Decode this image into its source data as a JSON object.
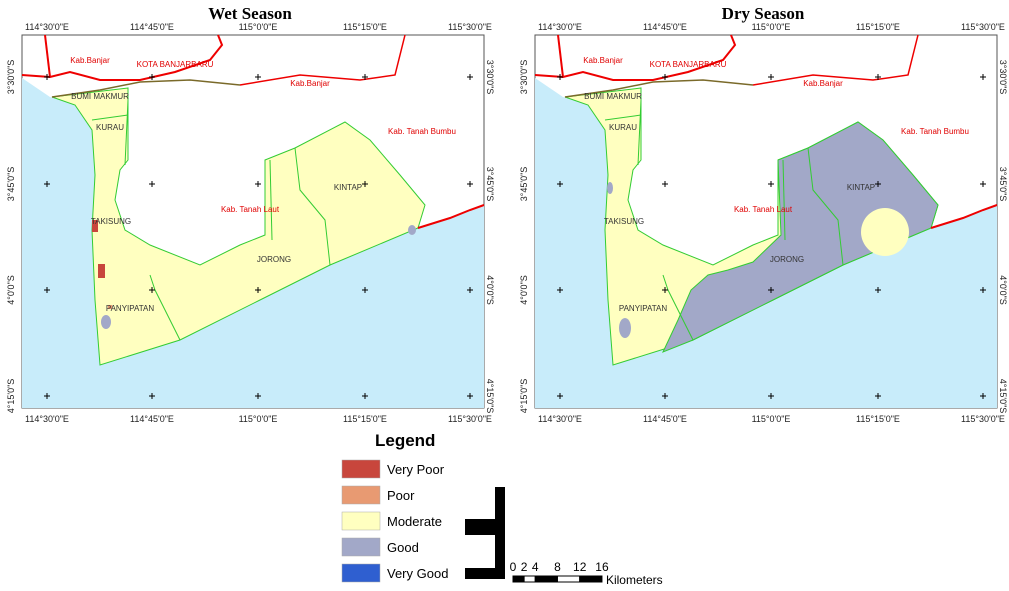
{
  "maps": [
    {
      "title": "Wet Season",
      "x_labels": [
        "114°30'0\"E",
        "114°45'0\"E",
        "115°0'0\"E",
        "115°15'0\"E",
        "115°30'0\"E"
      ],
      "y_labels": [
        "3°30'0\"S",
        "3°45'0\"S",
        "4°0'0\"S",
        "4°15'0\"S"
      ],
      "places": [
        "Kab.Banjar",
        "KOTA BANJARBARU",
        "Kab.Banjar",
        "BUMI MAKMUR",
        "KURAU",
        "Kab. Tanah Bumbu",
        "KINTAP",
        "Kab. Tanah Laut",
        "TAKISUNG",
        "JORONG",
        "PANYIPATAN"
      ]
    },
    {
      "title": "Dry Season",
      "x_labels": [
        "114°30'0\"E",
        "114°45'0\"E",
        "115°0'0\"E",
        "115°15'0\"E",
        "115°30'0\"E"
      ],
      "y_labels": [
        "3°30'0\"S",
        "3°45'0\"S",
        "4°0'0\"S",
        "4°15'0\"S"
      ],
      "places": [
        "Kab.Banjar",
        "KOTA BANJARBARU",
        "Kab.Banjar",
        "BUMI MAKMUR",
        "KURAU",
        "Kab. Tanah Bumbu",
        "KINTAP",
        "Kab. Tanah Laut",
        "TAKISUNG",
        "JORONG",
        "PANYIPATAN"
      ]
    }
  ],
  "legend": {
    "title": "Legend",
    "items": [
      {
        "label": "Very Poor",
        "color": "#c8463c"
      },
      {
        "label": "Poor",
        "color": "#e89a72"
      },
      {
        "label": "Moderate",
        "color": "#ffffc0"
      },
      {
        "label": "Good",
        "color": "#a2a8c8"
      },
      {
        "label": "Very Good",
        "color": "#2f5fd0"
      }
    ]
  },
  "scale_bar": {
    "ticks": [
      0,
      2,
      4,
      8,
      12,
      16
    ],
    "unit": "Kilometers"
  }
}
